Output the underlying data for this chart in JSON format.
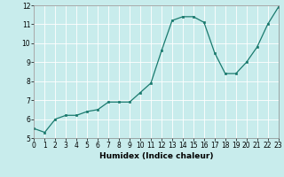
{
  "x": [
    0,
    1,
    2,
    3,
    4,
    5,
    6,
    7,
    8,
    9,
    10,
    11,
    12,
    13,
    14,
    15,
    16,
    17,
    18,
    19,
    20,
    21,
    22,
    23
  ],
  "y": [
    5.5,
    5.3,
    6.0,
    6.2,
    6.2,
    6.4,
    6.5,
    6.9,
    6.9,
    6.9,
    7.4,
    7.9,
    9.6,
    11.2,
    11.4,
    11.4,
    11.1,
    9.5,
    8.4,
    8.4,
    9.0,
    9.8,
    11.0,
    11.9
  ],
  "xlim": [
    0,
    23
  ],
  "ylim": [
    5,
    12
  ],
  "yticks": [
    5,
    6,
    7,
    8,
    9,
    10,
    11,
    12
  ],
  "xticks": [
    0,
    1,
    2,
    3,
    4,
    5,
    6,
    7,
    8,
    9,
    10,
    11,
    12,
    13,
    14,
    15,
    16,
    17,
    18,
    19,
    20,
    21,
    22,
    23
  ],
  "xlabel": "Humidex (Indice chaleur)",
  "line_color": "#1a7a6e",
  "marker": "s",
  "marker_size": 1.8,
  "background_color": "#c8ecec",
  "grid_color": "#ffffff",
  "tick_label_fontsize": 5.5,
  "xlabel_fontsize": 6.5
}
